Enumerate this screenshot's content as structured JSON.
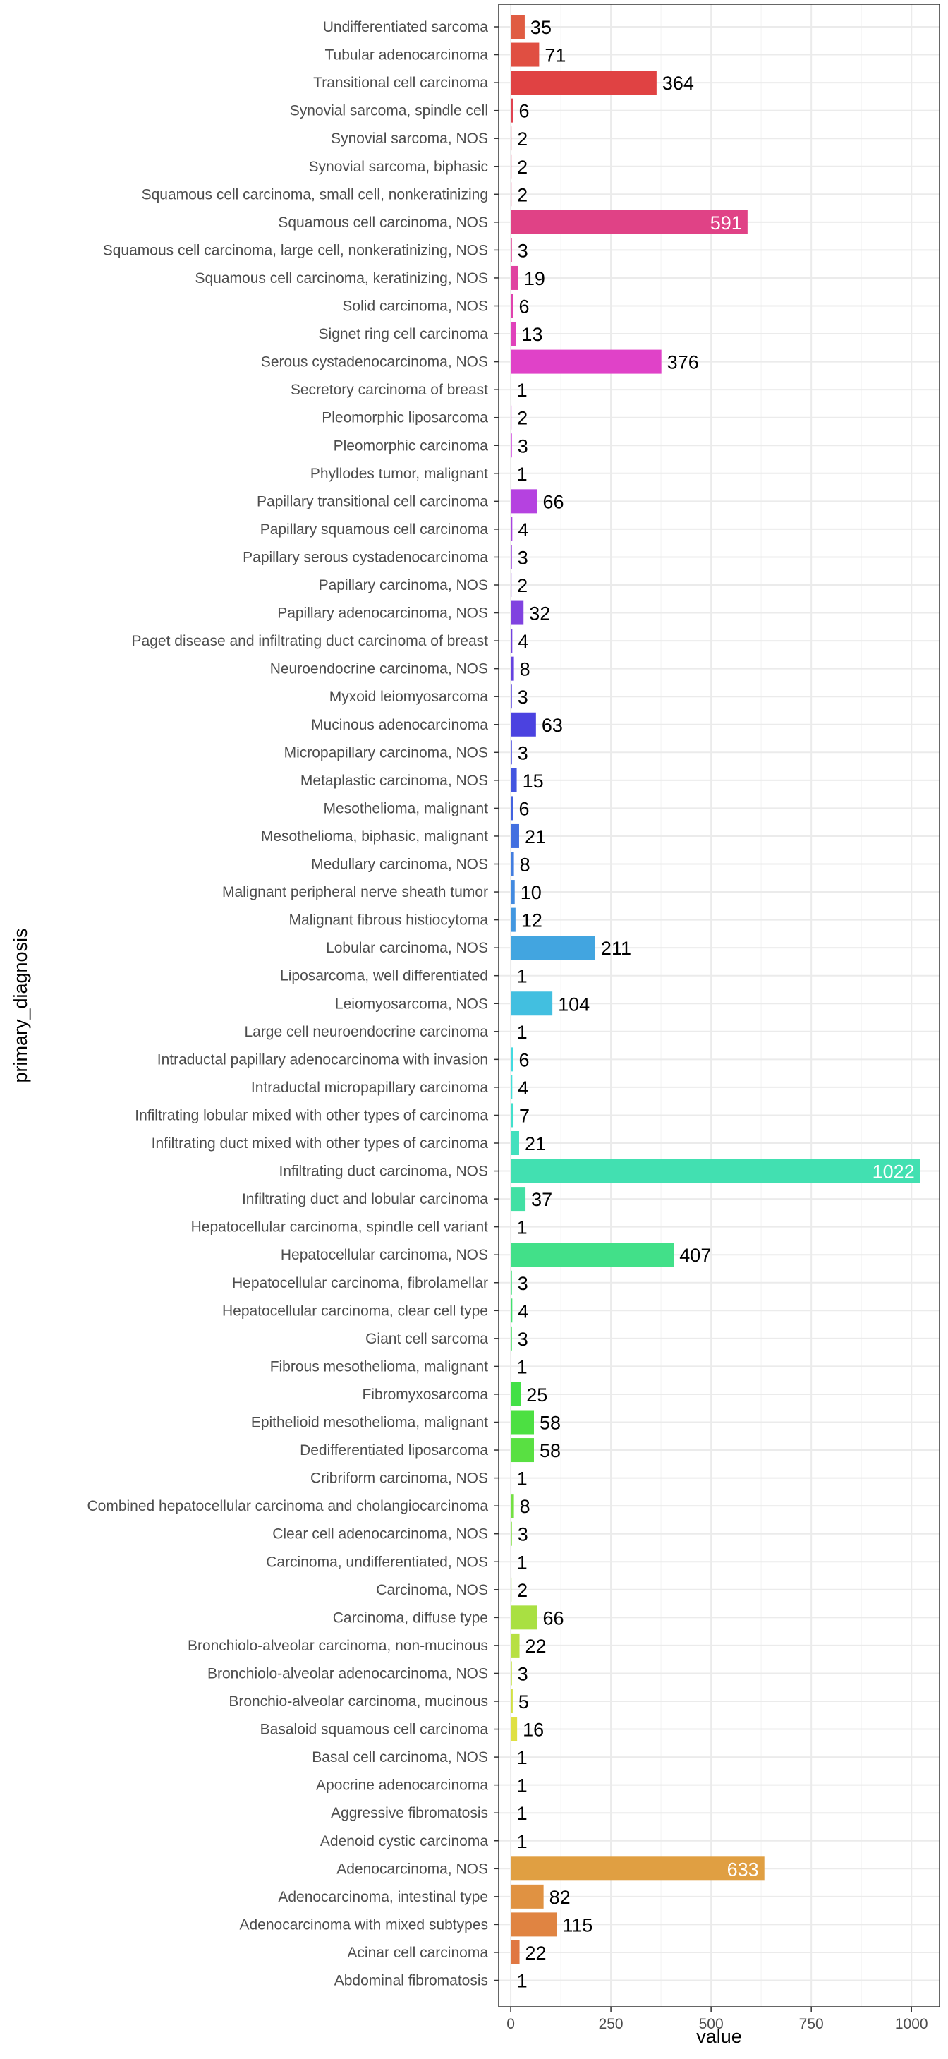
{
  "chart_data": {
    "type": "bar",
    "orientation": "horizontal",
    "xlabel": "value",
    "ylabel": "primary_diagnosis",
    "xlim": [
      -30,
      1070
    ],
    "x_ticks": [
      0,
      250,
      500,
      750,
      1000
    ],
    "grid": true,
    "legend": "none",
    "value_labels": true,
    "categories": [
      "Undifferentiated sarcoma",
      "Tubular adenocarcinoma",
      "Transitional cell carcinoma",
      "Synovial sarcoma, spindle cell",
      "Synovial sarcoma, NOS",
      "Synovial sarcoma, biphasic",
      "Squamous cell carcinoma, small cell, nonkeratinizing",
      "Squamous cell carcinoma, NOS",
      "Squamous cell carcinoma, large cell, nonkeratinizing, NOS",
      "Squamous cell carcinoma, keratinizing, NOS",
      "Solid carcinoma, NOS",
      "Signet ring cell carcinoma",
      "Serous cystadenocarcinoma, NOS",
      "Secretory carcinoma of breast",
      "Pleomorphic liposarcoma",
      "Pleomorphic carcinoma",
      "Phyllodes tumor, malignant",
      "Papillary transitional cell carcinoma",
      "Papillary squamous cell carcinoma",
      "Papillary serous cystadenocarcinoma",
      "Papillary carcinoma, NOS",
      "Papillary adenocarcinoma, NOS",
      "Paget disease and infiltrating duct carcinoma of breast",
      "Neuroendocrine carcinoma, NOS",
      "Myxoid leiomyosarcoma",
      "Mucinous adenocarcinoma",
      "Micropapillary carcinoma, NOS",
      "Metaplastic carcinoma, NOS",
      "Mesothelioma, malignant",
      "Mesothelioma, biphasic, malignant",
      "Medullary carcinoma, NOS",
      "Malignant peripheral nerve sheath tumor",
      "Malignant fibrous histiocytoma",
      "Lobular carcinoma, NOS",
      "Liposarcoma, well differentiated",
      "Leiomyosarcoma, NOS",
      "Large cell neuroendocrine carcinoma",
      "Intraductal papillary adenocarcinoma with invasion",
      "Intraductal micropapillary carcinoma",
      "Infiltrating lobular mixed with other types of carcinoma",
      "Infiltrating duct mixed with other types of carcinoma",
      "Infiltrating duct carcinoma, NOS",
      "Infiltrating duct and lobular carcinoma",
      "Hepatocellular carcinoma, spindle cell variant",
      "Hepatocellular carcinoma, NOS",
      "Hepatocellular carcinoma, fibrolamellar",
      "Hepatocellular carcinoma, clear cell type",
      "Giant cell sarcoma",
      "Fibrous mesothelioma, malignant",
      "Fibromyxosarcoma",
      "Epithelioid mesothelioma, malignant",
      "Dedifferentiated liposarcoma",
      "Cribriform carcinoma, NOS",
      "Combined hepatocellular carcinoma and cholangiocarcinoma",
      "Clear cell adenocarcinoma, NOS",
      "Carcinoma, undifferentiated, NOS",
      "Carcinoma, NOS",
      "Carcinoma, diffuse type",
      "Bronchiolo-alveolar carcinoma, non-mucinous",
      "Bronchiolo-alveolar adenocarcinoma, NOS",
      "Bronchio-alveolar carcinoma, mucinous",
      "Basaloid squamous cell carcinoma",
      "Basal cell carcinoma, NOS",
      "Apocrine adenocarcinoma",
      "Aggressive fibromatosis",
      "Adenoid cystic carcinoma",
      "Adenocarcinoma, NOS",
      "Adenocarcinoma, intestinal type",
      "Adenocarcinoma with mixed subtypes",
      "Acinar cell carcinoma",
      "Abdominal fibromatosis"
    ],
    "values": [
      35,
      71,
      364,
      6,
      2,
      2,
      2,
      591,
      3,
      19,
      6,
      13,
      376,
      1,
      2,
      3,
      1,
      66,
      4,
      3,
      2,
      32,
      4,
      8,
      3,
      63,
      3,
      15,
      6,
      21,
      8,
      10,
      12,
      211,
      1,
      104,
      1,
      6,
      4,
      7,
      21,
      1022,
      37,
      1,
      407,
      3,
      4,
      3,
      1,
      25,
      58,
      58,
      1,
      8,
      3,
      1,
      2,
      66,
      22,
      3,
      5,
      16,
      1,
      1,
      1,
      1,
      633,
      82,
      115,
      22,
      1
    ],
    "labels_inside": [
      "Squamous cell carcinoma, NOS",
      "Infiltrating duct carcinoma, NOS",
      "Adenocarcinoma, NOS"
    ],
    "colors": {
      "panel_border": "#333333",
      "grid_major": "#ebebeb",
      "grid_minor": "#f5f5f5",
      "label_outside": "#000000",
      "label_inside": "#ffffff"
    }
  }
}
